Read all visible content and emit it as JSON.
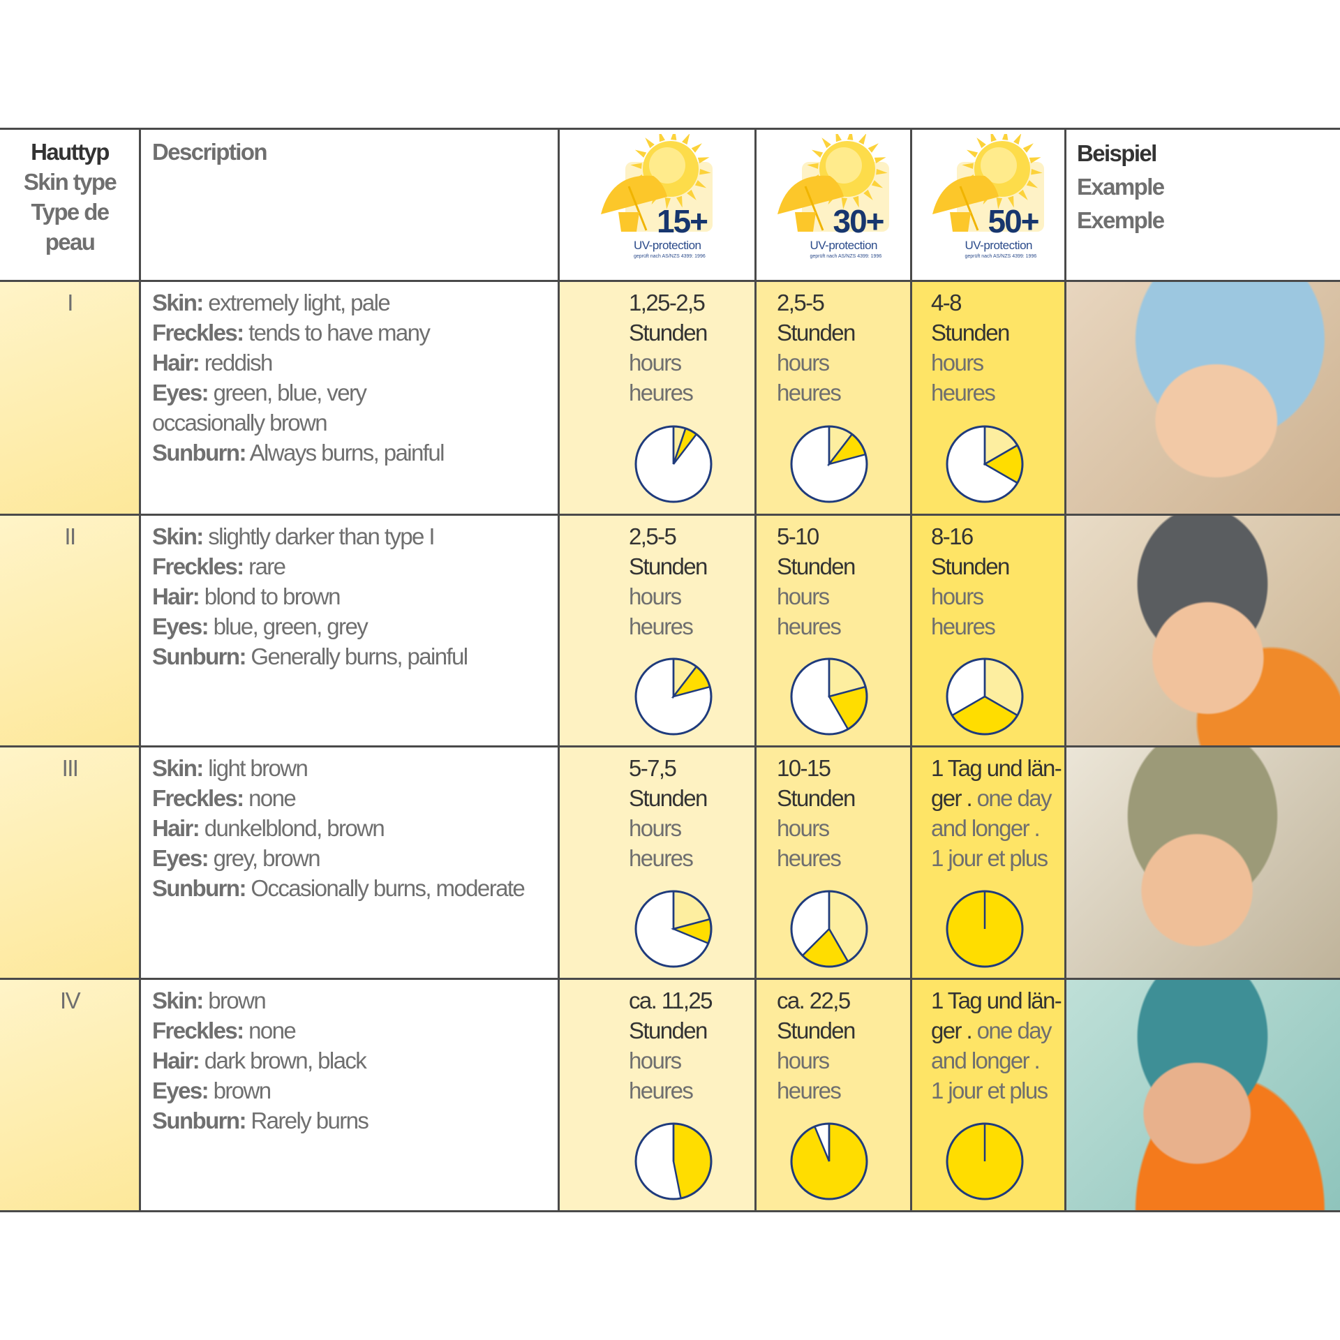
{
  "header": {
    "skin_type": [
      "Hauttyp",
      "Skin type",
      "Type de",
      "peau"
    ],
    "description": "Description",
    "example": [
      "Beispiel",
      "Example",
      "Exemple"
    ],
    "uv_logos": [
      {
        "value": "15+",
        "label": "UV-protection",
        "note": "geprüft nach AS/NZS 4399: 1996"
      },
      {
        "value": "30+",
        "label": "UV-protection",
        "note": "geprüft nach AS/NZS 4399: 1996"
      },
      {
        "value": "50+",
        "label": "UV-protection",
        "note": "geprüft nach AS/NZS 4399: 1996"
      }
    ]
  },
  "colors": {
    "pie_fill": "#ffdd00",
    "pie_base": "#fdeea0",
    "pie_outline": "#1f3b7c",
    "grid": "#4a4a4a"
  },
  "rows": [
    {
      "type": "I",
      "desc": [
        {
          "k": "Skin:",
          "v": " extremely light, pale"
        },
        {
          "k": "Freckles:",
          "v": " tends to have many"
        },
        {
          "k": "Hair:",
          "v": " reddish"
        },
        {
          "k": "Eyes:",
          "v": " green, blue, very"
        },
        {
          "k": "",
          "v": "occasionally brown"
        },
        {
          "k": "Sunburn:",
          "v": " Always burns, painful"
        }
      ],
      "protection": [
        {
          "lines": [
            "1,25-2,5",
            "Stunden",
            "hours",
            "heures"
          ],
          "hours_range": [
            1.25,
            2.5
          ]
        },
        {
          "lines": [
            "2,5-5",
            "Stunden",
            "hours",
            "heures"
          ],
          "hours_range": [
            2.5,
            5
          ]
        },
        {
          "lines": [
            "4-8",
            "Stunden",
            "hours",
            "heures"
          ],
          "hours_range": [
            4,
            8
          ]
        }
      ],
      "photo": "child-light-blue-hat"
    },
    {
      "type": "II",
      "desc": [
        {
          "k": "Skin:",
          "v": " slightly darker than type I"
        },
        {
          "k": "Freckles:",
          "v": " rare"
        },
        {
          "k": "Hair:",
          "v": " blond to brown"
        },
        {
          "k": "Eyes:",
          "v": " blue, green, grey"
        },
        {
          "k": "Sunburn:",
          "v": " Generally burns, painful"
        }
      ],
      "protection": [
        {
          "lines": [
            "2,5-5",
            "Stunden",
            "hours",
            "heures"
          ],
          "hours_range": [
            2.5,
            5
          ]
        },
        {
          "lines": [
            "5-10",
            "Stunden",
            "hours",
            "heures"
          ],
          "hours_range": [
            5,
            10
          ]
        },
        {
          "lines": [
            "8-16",
            "Stunden",
            "hours",
            "heures"
          ],
          "hours_range": [
            8,
            16
          ]
        }
      ],
      "photo": "child-grey-cap"
    },
    {
      "type": "III",
      "desc": [
        {
          "k": "Skin:",
          "v": " light brown"
        },
        {
          "k": "Freckles:",
          "v": " none"
        },
        {
          "k": "Hair:",
          "v": " dunkelblond, brown"
        },
        {
          "k": "Eyes:",
          "v": " grey, brown"
        },
        {
          "k": "Sunburn:",
          "v": " Occasionally burns, moderate"
        }
      ],
      "protection": [
        {
          "lines": [
            "5-7,5",
            "Stunden",
            "hours",
            "heures"
          ],
          "hours_range": [
            5,
            7.5
          ]
        },
        {
          "lines": [
            "10-15",
            "Stunden",
            "hours",
            "heures"
          ],
          "hours_range": [
            10,
            15
          ]
        },
        {
          "lines": [
            "1 Tag und län-",
            "ger . one day",
            "and longer .",
            "1 jour et plus"
          ],
          "hours_range": [
            0,
            24
          ]
        }
      ],
      "photo": "child-knit-hat"
    },
    {
      "type": "IV",
      "desc": [
        {
          "k": "Skin:",
          "v": " brown"
        },
        {
          "k": "Freckles:",
          "v": " none"
        },
        {
          "k": "Hair:",
          "v": " dark brown, black"
        },
        {
          "k": "Eyes:",
          "v": " brown"
        },
        {
          "k": "Sunburn:",
          "v": " Rarely burns"
        }
      ],
      "protection": [
        {
          "lines": [
            "ca. 11,25",
            "Stunden",
            "hours",
            "heures"
          ],
          "hours_range": [
            0,
            11.25
          ]
        },
        {
          "lines": [
            "ca. 22,5",
            "Stunden",
            "hours",
            "heures"
          ],
          "hours_range": [
            0,
            22.5
          ]
        },
        {
          "lines": [
            "1 Tag und län-",
            "ger . one day",
            "and longer .",
            "1 jour et plus"
          ],
          "hours_range": [
            0,
            24
          ]
        }
      ],
      "photo": "child-patterned-cap"
    }
  ]
}
